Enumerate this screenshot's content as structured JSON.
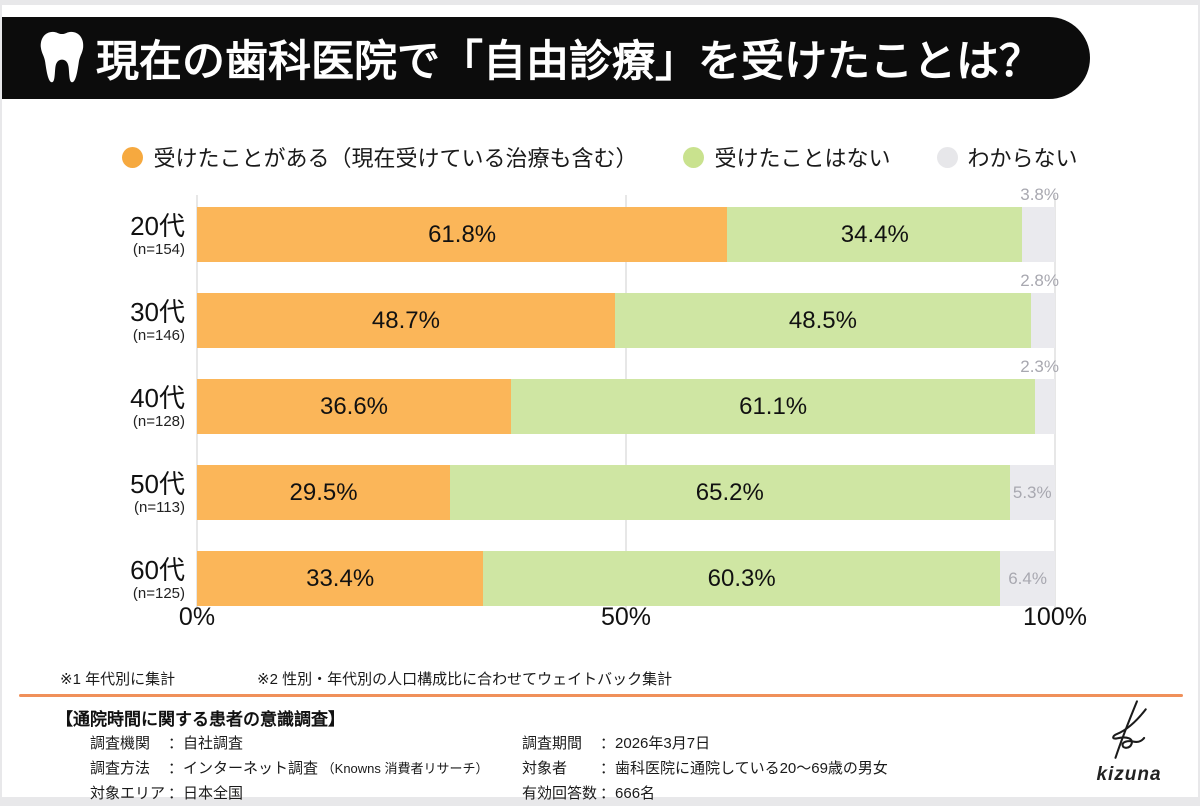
{
  "header": {
    "title": "現在の歯科医院で「自由診療」を受けたことは？",
    "icon": "tooth-icon"
  },
  "legend": [
    {
      "label": "受けたことがある（現在受けている治療も含む）",
      "marker_color": "#f6a93f"
    },
    {
      "label": "受けたことはない",
      "marker_color": "#c9e28e"
    },
    {
      "label": "わからない",
      "marker_color": "#e7e7ea"
    }
  ],
  "chart_data": {
    "type": "bar",
    "stacked": true,
    "orientation": "horizontal",
    "categories": [
      "20代",
      "30代",
      "40代",
      "50代",
      "60代"
    ],
    "category_sublabels": [
      "(n=154)",
      "(n=146)",
      "(n=128)",
      "(n=113)",
      "(n=125)"
    ],
    "series": [
      {
        "name": "受けたことがある（現在受けている治療も含む）",
        "color": "#fbb659",
        "values": [
          61.8,
          48.7,
          36.6,
          29.5,
          33.4
        ]
      },
      {
        "name": "受けたことはない",
        "color": "#cfe6a3",
        "values": [
          34.4,
          48.5,
          61.1,
          65.2,
          60.3
        ]
      },
      {
        "name": "わからない",
        "color": "#eaeaee",
        "values": [
          3.8,
          2.8,
          2.3,
          5.3,
          6.4
        ]
      }
    ],
    "xlim": [
      0,
      100
    ],
    "x_ticks": [
      "0%",
      "50%",
      "100%"
    ],
    "grid": "vertical-at-ticks",
    "legend_position": "top",
    "value_label_color_other": "#a8a8b0"
  },
  "footnotes": [
    "※1 年代別に集計",
    "※2 性別・年代別の人口構成比に合わせてウェイトバック集計"
  ],
  "divider_color": "#f0905a",
  "footer": {
    "survey_title": "【通院時間に関する患者の意識調査】",
    "details_left": [
      {
        "label": "調査機関",
        "colon": "：",
        "value": "自社調査",
        "note": ""
      },
      {
        "label": "調査方法",
        "colon": "：",
        "value": "インターネット調査",
        "note": "（Knowns 消費者リサーチ）"
      },
      {
        "label": "対象エリア",
        "colon": "：",
        "value": "日本全国",
        "note": ""
      }
    ],
    "details_right": [
      {
        "label": "調査期間",
        "colon": "：",
        "value": "2026年3月7日",
        "note": ""
      },
      {
        "label": "対象者",
        "colon": "：",
        "value": "歯科医院に通院している20〜69歳の男女",
        "note": ""
      },
      {
        "label": "有効回答数",
        "colon": "：",
        "value": "666名",
        "note": ""
      }
    ],
    "logo_text": "kizuna"
  }
}
